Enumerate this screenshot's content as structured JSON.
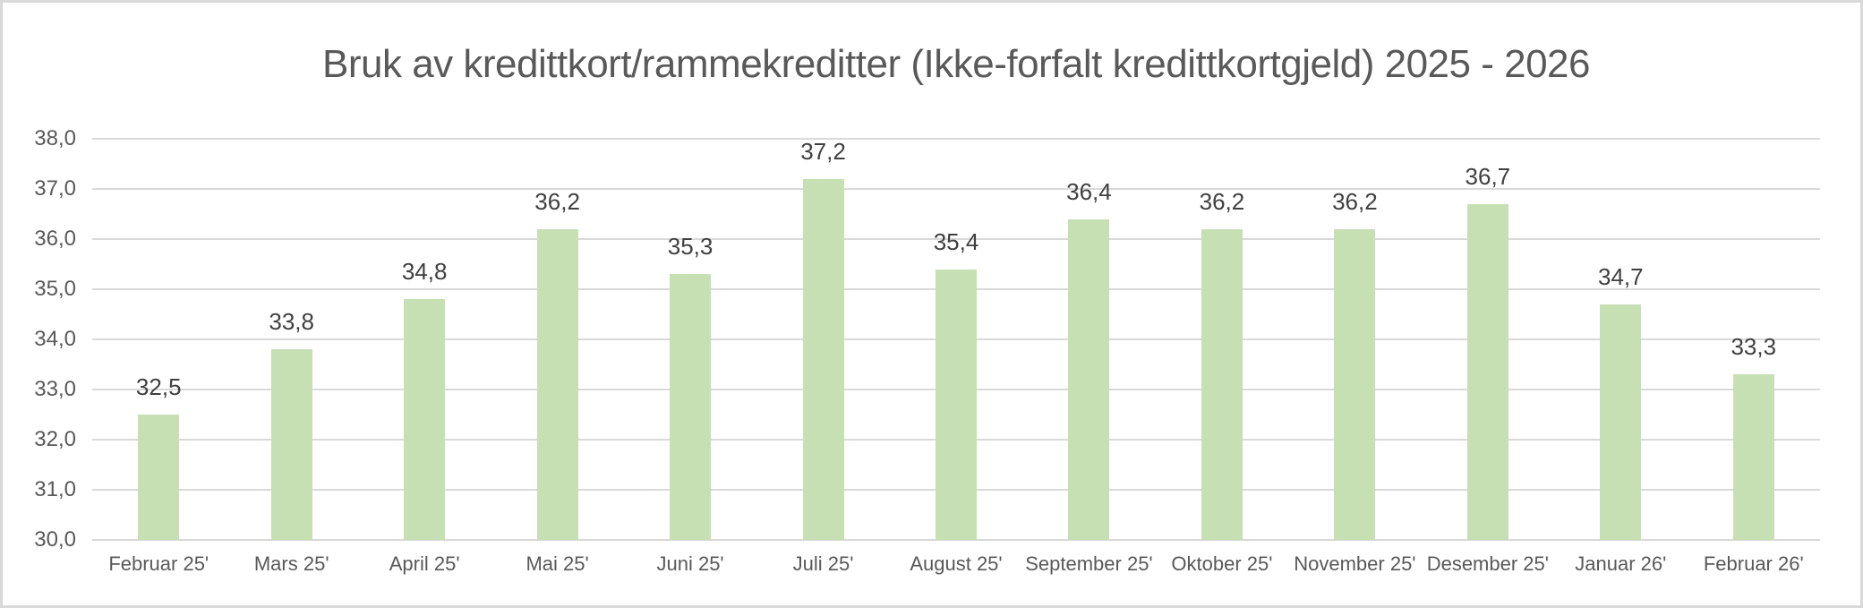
{
  "title": "Bruk av kredittkort/rammekreditter (Ikke-forfalt kredittkortgjeld) 2025 - 2026",
  "colors": {
    "bar": "#c6e0b4",
    "gridline": "#d9d9d9",
    "axis_text": "#595959",
    "data_label_text": "#404040",
    "title_text": "#595959",
    "frame_border": "#d9d9d9",
    "background": "#ffffff"
  },
  "chart_data": {
    "type": "bar",
    "title": "Bruk av kredittkort/rammekreditter (Ikke-forfalt kredittkortgjeld) 2025 - 2026",
    "categories": [
      "Februar 25'",
      "Mars 25'",
      "April 25'",
      "Mai 25'",
      "Juni 25'",
      "Juli 25'",
      "August 25'",
      "September 25'",
      "Oktober 25'",
      "November 25'",
      "Desember 25'",
      "Januar 26'",
      "Februar 26'"
    ],
    "values": [
      32.5,
      33.8,
      34.8,
      36.2,
      35.3,
      37.2,
      35.4,
      36.4,
      36.2,
      36.2,
      36.7,
      34.7,
      33.3
    ],
    "value_labels": [
      "32,5",
      "33,8",
      "34,8",
      "36,2",
      "35,3",
      "37,2",
      "35,4",
      "36,4",
      "36,2",
      "36,2",
      "36,7",
      "34,7",
      "33,3"
    ],
    "ylim": [
      30.0,
      38.0
    ],
    "ytick_step": 1.0,
    "ytick_labels": [
      "30,0",
      "31,0",
      "32,0",
      "33,0",
      "34,0",
      "35,0",
      "36,0",
      "37,0",
      "38,0"
    ],
    "xlabel": "",
    "ylabel": "",
    "grid": true,
    "legend_position": "none"
  }
}
